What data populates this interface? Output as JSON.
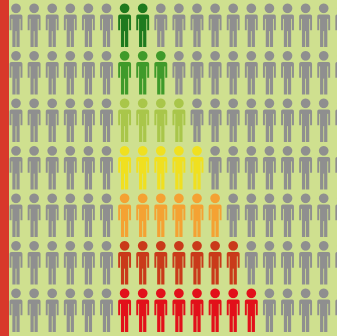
{
  "chart_data": {
    "type": "pictogram",
    "rows": 7,
    "icons_per_row": 20,
    "series": [
      {
        "colored_count": 2,
        "color": "#1e7a1e"
      },
      {
        "colored_count": 3,
        "color": "#3f9a2a"
      },
      {
        "colored_count": 4,
        "color": "#a9c64a"
      },
      {
        "colored_count": 5,
        "color": "#f0e020"
      },
      {
        "colored_count": 6,
        "color": "#f4a233"
      },
      {
        "colored_count": 7,
        "color": "#c93a1a"
      },
      {
        "colored_count": 8,
        "color": "#e2101a"
      }
    ],
    "base_color": "#8f8f8f",
    "background_color": "#cfe08f",
    "accent_bar_color": "#d8382a",
    "colored_start_column": 6,
    "icon_name": "person-icon"
  }
}
